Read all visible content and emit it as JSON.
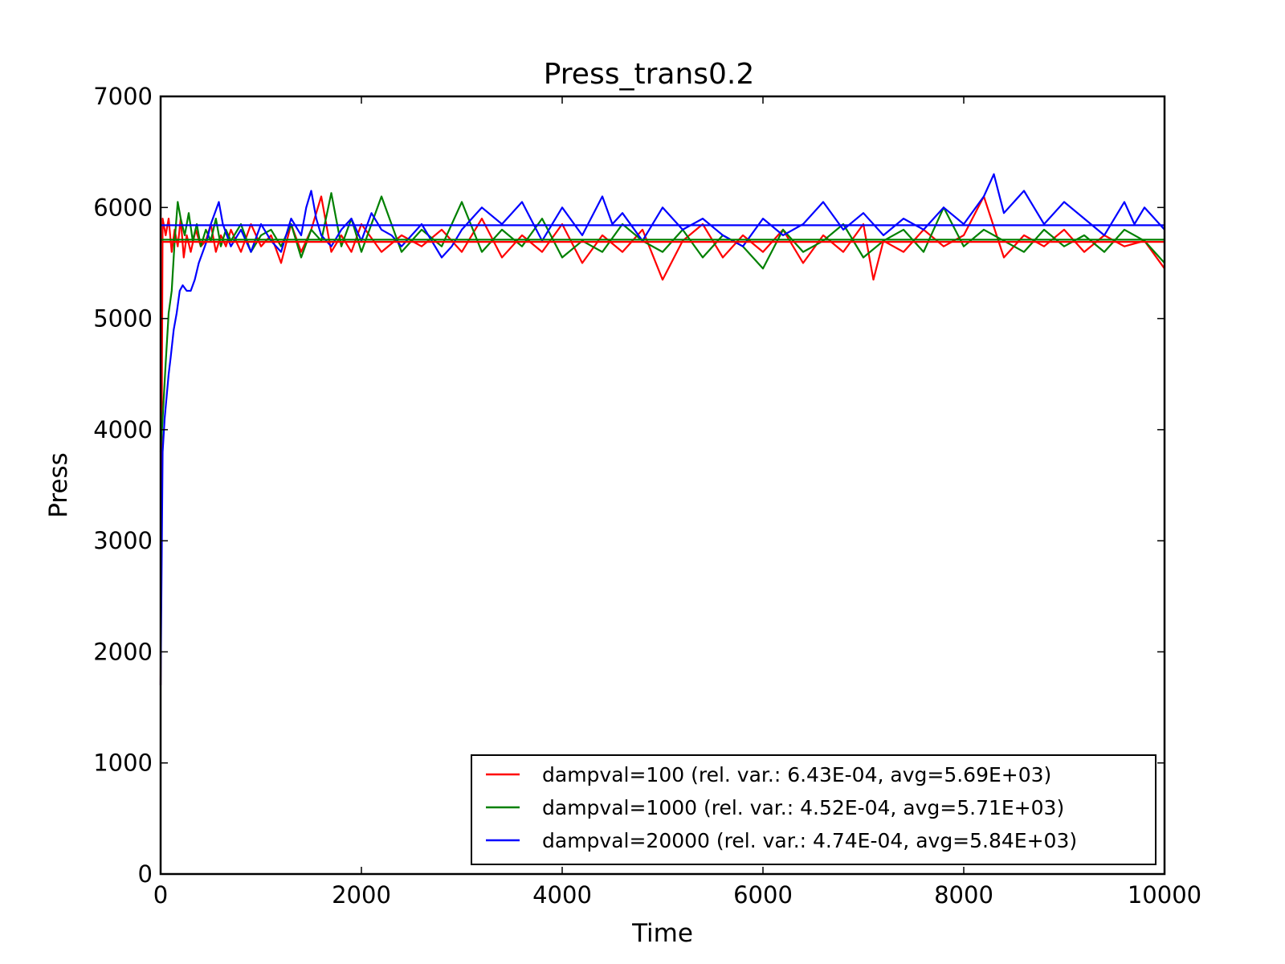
{
  "chart_data": {
    "type": "line",
    "title": "Press_trans0.2",
    "xlabel": "Time",
    "ylabel": "Press",
    "xlim": [
      0,
      10000
    ],
    "ylim": [
      0,
      7000
    ],
    "xticks": [
      0,
      2000,
      4000,
      6000,
      8000,
      10000
    ],
    "yticks": [
      0,
      1000,
      2000,
      3000,
      4000,
      5000,
      6000,
      7000
    ],
    "grid": false,
    "legend_position": "lower-right",
    "series": [
      {
        "name": "dampval=100 (rel. var.: 6.43E-04, avg=5.69E+03)",
        "color": "#ff0000",
        "avg": 5690,
        "x": [
          0,
          20,
          50,
          80,
          110,
          140,
          170,
          200,
          230,
          260,
          300,
          350,
          400,
          450,
          500,
          550,
          600,
          650,
          700,
          800,
          900,
          1000,
          1100,
          1200,
          1300,
          1400,
          1500,
          1600,
          1700,
          1800,
          1900,
          2000,
          2200,
          2400,
          2600,
          2800,
          3000,
          3200,
          3400,
          3600,
          3800,
          4000,
          4200,
          4400,
          4600,
          4800,
          5000,
          5200,
          5400,
          5600,
          5800,
          6000,
          6200,
          6400,
          6600,
          6800,
          7000,
          7100,
          7200,
          7400,
          7600,
          7800,
          8000,
          8200,
          8400,
          8600,
          8800,
          9000,
          9200,
          9400,
          9600,
          9800,
          10000
        ],
        "values": [
          1700,
          5900,
          5750,
          5900,
          5600,
          5800,
          5650,
          5900,
          5550,
          5750,
          5600,
          5800,
          5650,
          5700,
          5850,
          5600,
          5750,
          5650,
          5800,
          5600,
          5850,
          5650,
          5750,
          5500,
          5850,
          5600,
          5800,
          6100,
          5600,
          5750,
          5600,
          5850,
          5600,
          5750,
          5650,
          5800,
          5600,
          5900,
          5550,
          5750,
          5600,
          5850,
          5500,
          5750,
          5600,
          5800,
          5350,
          5700,
          5850,
          5550,
          5750,
          5600,
          5800,
          5500,
          5750,
          5600,
          5850,
          5350,
          5700,
          5600,
          5800,
          5650,
          5750,
          6100,
          5550,
          5750,
          5650,
          5800,
          5600,
          5750,
          5650,
          5700,
          5450
        ]
      },
      {
        "name": "dampval=1000 (rel. var.: 4.52E-04, avg=5.71E+03)",
        "color": "#008000",
        "avg": 5710,
        "x": [
          0,
          20,
          50,
          80,
          110,
          140,
          170,
          200,
          240,
          280,
          320,
          360,
          400,
          450,
          500,
          550,
          600,
          650,
          700,
          800,
          900,
          1000,
          1100,
          1200,
          1300,
          1400,
          1500,
          1600,
          1700,
          1800,
          1900,
          2000,
          2200,
          2400,
          2600,
          2800,
          3000,
          3200,
          3400,
          3600,
          3800,
          4000,
          4200,
          4400,
          4600,
          4800,
          5000,
          5200,
          5400,
          5600,
          5800,
          6000,
          6200,
          6400,
          6600,
          6800,
          7000,
          7200,
          7400,
          7600,
          7800,
          8000,
          8200,
          8400,
          8600,
          8800,
          9000,
          9200,
          9400,
          9600,
          9800,
          10000
        ],
        "values": [
          3800,
          4100,
          4600,
          5050,
          5250,
          5700,
          6050,
          5900,
          5750,
          5950,
          5700,
          5850,
          5650,
          5800,
          5700,
          5900,
          5650,
          5800,
          5700,
          5850,
          5600,
          5750,
          5800,
          5650,
          5850,
          5550,
          5800,
          5700,
          6130,
          5650,
          5900,
          5600,
          6100,
          5600,
          5800,
          5650,
          6050,
          5600,
          5800,
          5650,
          5900,
          5550,
          5700,
          5600,
          5850,
          5700,
          5600,
          5800,
          5550,
          5750,
          5650,
          5450,
          5800,
          5600,
          5700,
          5850,
          5550,
          5700,
          5800,
          5600,
          6000,
          5650,
          5800,
          5700,
          5600,
          5800,
          5650,
          5750,
          5600,
          5800,
          5700,
          5500
        ]
      },
      {
        "name": "dampval=20000 (rel. var.: 4.74E-04, avg=5.84E+03)",
        "color": "#0000ff",
        "avg": 5840,
        "x": [
          0,
          20,
          40,
          60,
          80,
          100,
          130,
          160,
          190,
          220,
          260,
          300,
          340,
          380,
          420,
          460,
          500,
          540,
          580,
          620,
          660,
          700,
          800,
          900,
          1000,
          1100,
          1200,
          1300,
          1400,
          1450,
          1500,
          1550,
          1600,
          1700,
          1800,
          1900,
          2000,
          2100,
          2200,
          2300,
          2400,
          2600,
          2800,
          2900,
          3000,
          3200,
          3400,
          3600,
          3800,
          4000,
          4200,
          4400,
          4500,
          4600,
          4800,
          5000,
          5200,
          5400,
          5600,
          5800,
          6000,
          6200,
          6400,
          6600,
          6800,
          7000,
          7200,
          7400,
          7600,
          7800,
          8000,
          8200,
          8300,
          8400,
          8600,
          8800,
          9000,
          9200,
          9400,
          9600,
          9700,
          9800,
          10000
        ],
        "values": [
          1700,
          3800,
          4100,
          4300,
          4500,
          4650,
          4900,
          5050,
          5250,
          5300,
          5250,
          5250,
          5350,
          5500,
          5600,
          5700,
          5850,
          5950,
          6050,
          5850,
          5750,
          5650,
          5800,
          5600,
          5850,
          5700,
          5600,
          5900,
          5750,
          6000,
          6150,
          5900,
          5750,
          5650,
          5800,
          5900,
          5700,
          5950,
          5800,
          5750,
          5650,
          5850,
          5550,
          5650,
          5800,
          6000,
          5850,
          6050,
          5700,
          6000,
          5750,
          6100,
          5850,
          5950,
          5700,
          6000,
          5800,
          5900,
          5750,
          5650,
          5900,
          5750,
          5850,
          6050,
          5800,
          5950,
          5750,
          5900,
          5800,
          6000,
          5850,
          6100,
          6300,
          5950,
          6150,
          5850,
          6050,
          5900,
          5750,
          6050,
          5850,
          6000,
          5800
        ]
      }
    ]
  }
}
